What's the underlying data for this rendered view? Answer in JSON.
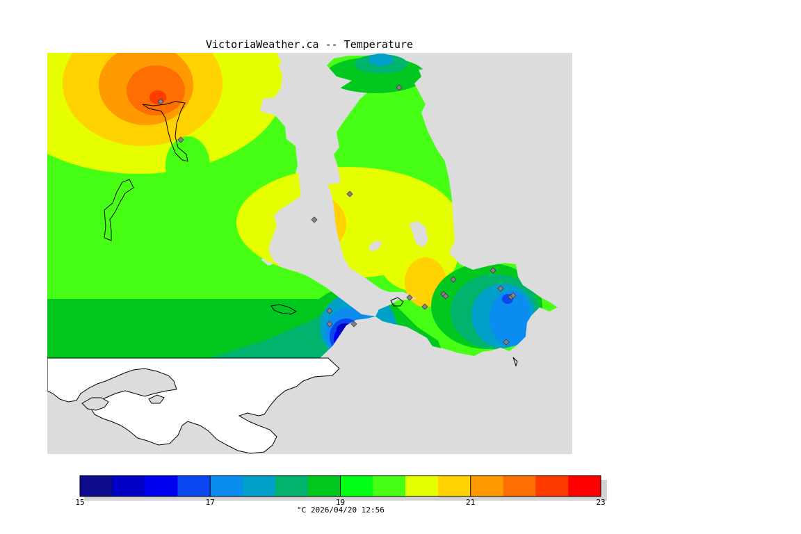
{
  "title": "VictoriaWeather.ca -- Temperature",
  "caption": "°C  2026/04/20 12:56",
  "colors": {
    "land_no_data": "#ffffff",
    "water": "#dcdcdc",
    "coast": "#000000",
    "station_marker": "#8c7f8c"
  },
  "colorbar": {
    "min": 15,
    "max": 23,
    "step": 0.5,
    "tick_labels": [
      "15",
      "17",
      "19",
      "21",
      "23"
    ],
    "colors": [
      "#0b0b8c",
      "#0000c8",
      "#0000f0",
      "#0a46f0",
      "#0a8cf0",
      "#00a0c8",
      "#00b46e",
      "#00c81e",
      "#00ff14",
      "#46ff14",
      "#e6ff00",
      "#ffd200",
      "#ff9b00",
      "#ff6e00",
      "#ff3c00",
      "#ff0000"
    ]
  },
  "temperature_features": [
    {
      "kind": "warm-peak",
      "value": 22.0
    },
    {
      "kind": "warm-peak",
      "value": 21.0
    },
    {
      "kind": "warm-peak",
      "value": 21.0
    },
    {
      "kind": "cold-core",
      "value": 15.5
    },
    {
      "kind": "cold-core",
      "value": 16.5
    }
  ]
}
